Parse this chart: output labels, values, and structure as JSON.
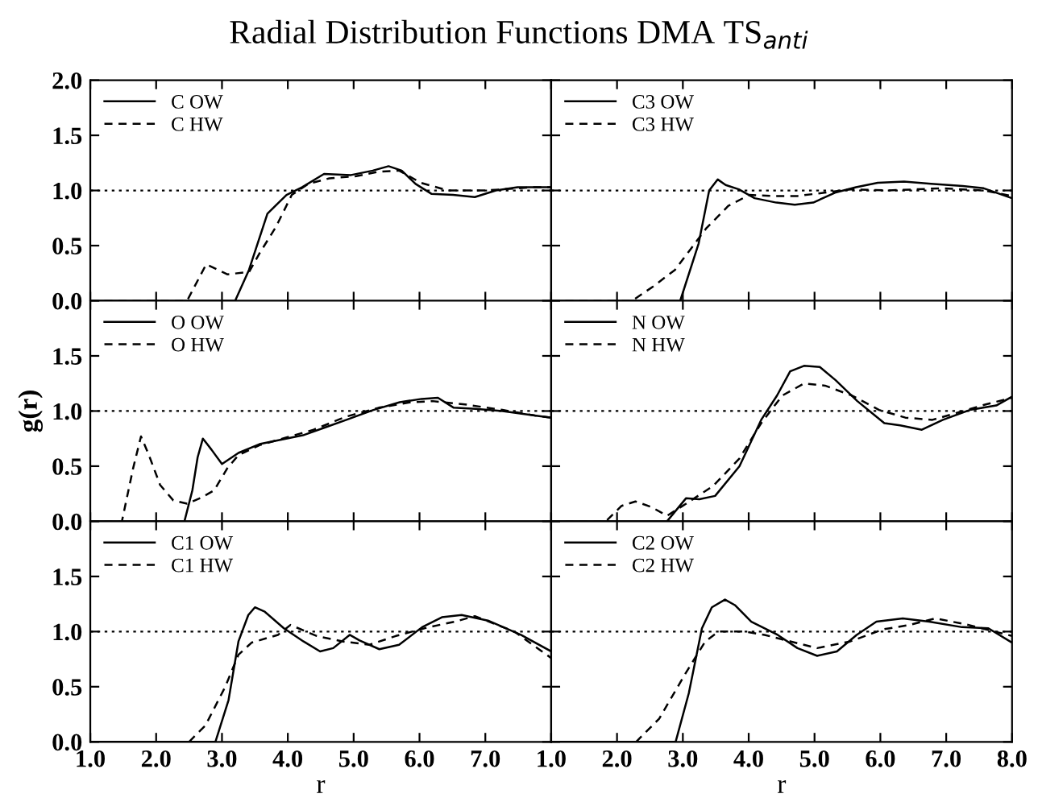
{
  "chart_data": [
    {
      "type": "line",
      "title": "Radial Distribution Functions DMA TS$_{anti}$",
      "xlim": [
        1,
        8
      ],
      "ylim": [
        0,
        2
      ],
      "xticks": [
        1,
        2,
        3,
        4,
        5,
        6,
        7,
        8
      ],
      "yticks": [
        {
          "value": 0,
          "label": "0.0"
        },
        {
          "value": 0.5,
          "label": "0.5"
        },
        {
          "value": 1,
          "label": "1.0"
        },
        {
          "value": 1.5,
          "label": "1.5"
        },
        {
          "value": 2,
          "label": "2.0"
        }
      ],
      "tick_labels": "y",
      "legend": "top left",
      "grid": false,
      "ref_lines": [
        {
          "axis": "y",
          "value": 1,
          "line_style": "dotted",
          "color": "#000000"
        }
      ],
      "series": [
        {
          "name": "C OW",
          "color": "#000000",
          "line_style": "solid",
          "x": [
            1.0,
            3.2,
            3.41,
            3.69,
            3.98,
            4.22,
            4.55,
            4.96,
            5.29,
            5.53,
            5.73,
            5.94,
            6.18,
            6.51,
            6.84,
            7.16,
            7.49,
            7.73,
            8.0
          ],
          "values": [
            0,
            0,
            0.28,
            0.79,
            0.96,
            1.03,
            1.15,
            1.14,
            1.18,
            1.22,
            1.18,
            1.06,
            0.97,
            0.96,
            0.94,
            1.0,
            1.03,
            1.03,
            1.03
          ]
        },
        {
          "name": "C HW",
          "color": "#000000",
          "line_style": "dashed",
          "x": [
            1.0,
            2.47,
            2.76,
            3.08,
            3.41,
            3.57,
            3.82,
            4.06,
            4.31,
            4.63,
            5.04,
            5.37,
            5.69,
            6.02,
            6.43,
            7.0,
            7.73,
            8.0
          ],
          "values": [
            0,
            0,
            0.33,
            0.24,
            0.26,
            0.43,
            0.67,
            0.96,
            1.06,
            1.11,
            1.13,
            1.17,
            1.18,
            1.07,
            1.0,
            1.0,
            1.03,
            1.03
          ]
        }
      ]
    },
    {
      "type": "line",
      "xlim": [
        1,
        8
      ],
      "ylim": [
        0,
        2
      ],
      "xticks": [
        1,
        2,
        3,
        4,
        5,
        6,
        7,
        8
      ],
      "yticks": [
        0,
        0.5,
        1,
        1.5,
        2
      ],
      "tick_labels": false,
      "legend": "top left",
      "grid": false,
      "ref_lines": [
        {
          "axis": "y",
          "value": 1,
          "line_style": "dotted",
          "color": "#000000"
        }
      ],
      "series": [
        {
          "name": "C3 OW",
          "color": "#000000",
          "line_style": "solid",
          "x": [
            1.0,
            2.96,
            3.24,
            3.4,
            3.53,
            3.65,
            3.85,
            4.09,
            4.42,
            4.7,
            4.98,
            5.31,
            5.63,
            5.96,
            6.36,
            6.77,
            7.25,
            7.57,
            8.0
          ],
          "values": [
            0,
            0,
            0.52,
            1.0,
            1.1,
            1.05,
            1.01,
            0.93,
            0.89,
            0.87,
            0.89,
            0.98,
            1.03,
            1.07,
            1.08,
            1.06,
            1.04,
            1.02,
            0.93
          ]
        },
        {
          "name": "C3 HW",
          "color": "#000000",
          "line_style": "dashed",
          "x": [
            1.0,
            2.23,
            2.55,
            2.88,
            3.12,
            3.36,
            3.69,
            4.01,
            4.34,
            4.74,
            5.15,
            5.55,
            6.12,
            6.93,
            7.57,
            8.0
          ],
          "values": [
            0,
            0,
            0.13,
            0.28,
            0.47,
            0.66,
            0.86,
            0.96,
            0.95,
            0.95,
            0.98,
            1.01,
            1.0,
            1.02,
            1.0,
            0.95
          ]
        }
      ]
    },
    {
      "type": "line",
      "ylabel": "g(r)",
      "xlim": [
        1,
        8
      ],
      "ylim": [
        0,
        2
      ],
      "xticks": [
        1,
        2,
        3,
        4,
        5,
        6,
        7,
        8
      ],
      "yticks": [
        {
          "value": 0,
          "label": "0.0"
        },
        {
          "value": 0.5,
          "label": "0.5"
        },
        {
          "value": 1,
          "label": "1.0"
        },
        {
          "value": 1.5,
          "label": "1.5"
        },
        {
          "value": 2,
          "label": null
        }
      ],
      "tick_labels": "y",
      "legend": "top left",
      "grid": false,
      "ref_lines": [
        {
          "axis": "y",
          "value": 1,
          "line_style": "dotted",
          "color": "#000000"
        }
      ],
      "series": [
        {
          "name": "O OW",
          "color": "#000000",
          "line_style": "solid",
          "x": [
            1.0,
            2.43,
            2.55,
            2.63,
            2.71,
            2.84,
            3.0,
            3.25,
            3.57,
            3.9,
            4.23,
            4.56,
            4.89,
            5.3,
            5.7,
            6.03,
            6.28,
            6.52,
            6.85,
            7.26,
            7.75,
            8.0
          ],
          "values": [
            0,
            0,
            0.28,
            0.58,
            0.75,
            0.65,
            0.52,
            0.62,
            0.7,
            0.74,
            0.78,
            0.85,
            0.92,
            1.01,
            1.08,
            1.11,
            1.12,
            1.03,
            1.02,
            1.0,
            0.96,
            0.94
          ]
        },
        {
          "name": "O HW",
          "color": "#000000",
          "line_style": "dashed",
          "x": [
            1.0,
            1.48,
            1.65,
            1.77,
            1.89,
            2.06,
            2.26,
            2.47,
            2.67,
            2.88,
            3.08,
            3.25,
            3.57,
            3.98,
            4.39,
            4.89,
            5.38,
            5.87,
            6.2,
            6.69,
            7.26,
            7.75,
            8.0
          ],
          "values": [
            0,
            0,
            0.48,
            0.77,
            0.6,
            0.33,
            0.19,
            0.16,
            0.21,
            0.28,
            0.48,
            0.6,
            0.69,
            0.76,
            0.83,
            0.95,
            1.03,
            1.08,
            1.09,
            1.06,
            1.01,
            0.96,
            0.94
          ]
        }
      ]
    },
    {
      "type": "line",
      "xlim": [
        1,
        8
      ],
      "ylim": [
        0,
        2
      ],
      "xticks": [
        1,
        2,
        3,
        4,
        5,
        6,
        7,
        8
      ],
      "yticks": [
        0,
        0.5,
        1,
        1.5,
        2
      ],
      "tick_labels": false,
      "legend": "top left",
      "grid": false,
      "ref_lines": [
        {
          "axis": "y",
          "value": 1,
          "line_style": "dotted",
          "color": "#000000"
        }
      ],
      "series": [
        {
          "name": "N OW",
          "color": "#000000",
          "line_style": "solid",
          "x": [
            1.0,
            2.76,
            3.05,
            3.25,
            3.49,
            3.86,
            4.19,
            4.43,
            4.63,
            4.84,
            5.08,
            5.32,
            5.65,
            6.06,
            6.3,
            6.63,
            6.95,
            7.36,
            7.76,
            8.0
          ],
          "values": [
            0,
            0,
            0.21,
            0.2,
            0.23,
            0.5,
            0.92,
            1.14,
            1.36,
            1.41,
            1.4,
            1.28,
            1.09,
            0.89,
            0.87,
            0.83,
            0.92,
            1.01,
            1.05,
            1.13
          ]
        },
        {
          "name": "N HW",
          "color": "#000000",
          "line_style": "dashed",
          "x": [
            1.0,
            1.83,
            2.07,
            2.28,
            2.52,
            2.76,
            3.05,
            3.46,
            3.86,
            4.19,
            4.51,
            4.84,
            5.16,
            5.57,
            5.98,
            6.38,
            6.79,
            7.2,
            7.6,
            8.0
          ],
          "values": [
            0,
            0,
            0.14,
            0.18,
            0.13,
            0.05,
            0.16,
            0.32,
            0.57,
            0.89,
            1.14,
            1.25,
            1.23,
            1.14,
            1.01,
            0.94,
            0.92,
            0.99,
            1.06,
            1.12
          ]
        }
      ]
    },
    {
      "type": "line",
      "xlabel": "r",
      "xlim": [
        1,
        8
      ],
      "ylim": [
        0,
        2
      ],
      "xticks": [
        {
          "value": 1,
          "label": "1.0"
        },
        {
          "value": 2,
          "label": "2.0"
        },
        {
          "value": 3,
          "label": "3.0"
        },
        {
          "value": 4,
          "label": "4.0"
        },
        {
          "value": 5,
          "label": "5.0"
        },
        {
          "value": 6,
          "label": "6.0"
        },
        {
          "value": 7,
          "label": "7.0"
        },
        {
          "value": 8,
          "label": null
        }
      ],
      "yticks": [
        {
          "value": 0,
          "label": "0.0"
        },
        {
          "value": 0.5,
          "label": "0.5"
        },
        {
          "value": 1,
          "label": "1.0"
        },
        {
          "value": 1.5,
          "label": "1.5"
        },
        {
          "value": 2,
          "label": null
        }
      ],
      "legend": "top left",
      "grid": false,
      "ref_lines": [
        {
          "axis": "y",
          "value": 1,
          "line_style": "dotted",
          "color": "#000000"
        }
      ],
      "series": [
        {
          "name": "C1 OW",
          "color": "#000000",
          "line_style": "solid",
          "x": [
            1.0,
            2.9,
            3.1,
            3.25,
            3.4,
            3.5,
            3.65,
            3.94,
            4.24,
            4.49,
            4.69,
            4.94,
            5.09,
            5.39,
            5.69,
            6.04,
            6.34,
            6.64,
            7.04,
            7.54,
            8.0
          ],
          "values": [
            0,
            0,
            0.38,
            0.91,
            1.15,
            1.22,
            1.18,
            1.03,
            0.91,
            0.82,
            0.85,
            0.97,
            0.92,
            0.84,
            0.88,
            1.04,
            1.13,
            1.15,
            1.1,
            0.97,
            0.82
          ]
        },
        {
          "name": "C1 HW",
          "color": "#000000",
          "line_style": "dashed",
          "x": [
            1.0,
            2.5,
            2.75,
            3.05,
            3.25,
            3.45,
            3.85,
            4.04,
            4.44,
            4.84,
            5.24,
            5.64,
            6.14,
            6.54,
            6.84,
            7.44,
            8.0
          ],
          "values": [
            0,
            0,
            0.15,
            0.5,
            0.79,
            0.9,
            0.97,
            1.06,
            0.96,
            0.91,
            0.88,
            0.96,
            1.04,
            1.09,
            1.14,
            1.0,
            0.76
          ]
        }
      ]
    },
    {
      "type": "line",
      "xlabel": "r",
      "xlim": [
        1,
        8
      ],
      "ylim": [
        0,
        2
      ],
      "xticks": [
        {
          "value": 1,
          "label": "1.0"
        },
        {
          "value": 2,
          "label": "2.0"
        },
        {
          "value": 3,
          "label": "3.0"
        },
        {
          "value": 4,
          "label": "4.0"
        },
        {
          "value": 5,
          "label": "5.0"
        },
        {
          "value": 6,
          "label": "6.0"
        },
        {
          "value": 7,
          "label": "7.0"
        },
        {
          "value": 8,
          "label": "8.0"
        }
      ],
      "yticks": [
        0,
        0.5,
        1,
        1.5,
        2
      ],
      "tick_labels": "x",
      "legend": "top left",
      "grid": false,
      "ref_lines": [
        {
          "axis": "y",
          "value": 1,
          "line_style": "dotted",
          "color": "#000000"
        }
      ],
      "series": [
        {
          "name": "C2 OW",
          "color": "#000000",
          "line_style": "solid",
          "x": [
            1.0,
            2.89,
            3.09,
            3.29,
            3.44,
            3.64,
            3.79,
            4.04,
            4.44,
            4.74,
            5.04,
            5.34,
            5.64,
            5.94,
            6.34,
            6.74,
            7.24,
            7.64,
            8.0
          ],
          "values": [
            0,
            0,
            0.44,
            1.03,
            1.22,
            1.29,
            1.24,
            1.09,
            0.97,
            0.85,
            0.78,
            0.82,
            0.97,
            1.09,
            1.12,
            1.09,
            1.04,
            1.03,
            0.9
          ]
        },
        {
          "name": "C2 HW",
          "color": "#000000",
          "line_style": "dashed",
          "x": [
            1.0,
            2.29,
            2.64,
            3.04,
            3.34,
            3.54,
            3.94,
            4.24,
            4.64,
            5.04,
            5.54,
            6.04,
            6.44,
            6.84,
            7.34,
            8.0
          ],
          "values": [
            0,
            0,
            0.21,
            0.62,
            0.91,
            1.0,
            1.0,
            0.97,
            0.91,
            0.85,
            0.91,
            1.02,
            1.06,
            1.12,
            1.06,
            0.96
          ]
        }
      ]
    }
  ]
}
